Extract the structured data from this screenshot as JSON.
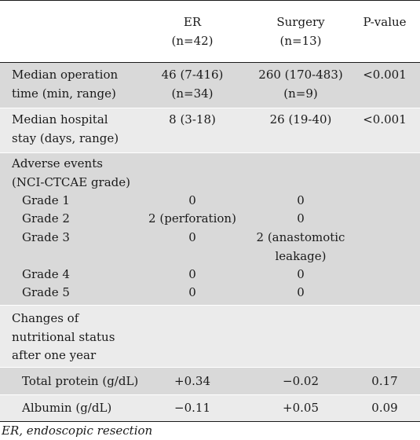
{
  "table": {
    "headers": {
      "c1": [
        "ER",
        "(n=42)"
      ],
      "c2": [
        "Surgery",
        "(n=13)"
      ],
      "c3": [
        "P-value"
      ]
    },
    "op_time": {
      "label": [
        "Median operation",
        "time (min, range)"
      ],
      "er": [
        "46 (7-416)",
        "(n=34)"
      ],
      "surg": [
        "260 (170-483)",
        "(n=9)"
      ],
      "p": "<0.001"
    },
    "stay": {
      "label": [
        "Median hospital",
        "stay (days, range)"
      ],
      "er": "8 (3-18)",
      "surg": "26 (19-40)",
      "p": "<0.001"
    },
    "adverse": {
      "label": [
        "Adverse events",
        "(NCI-CTCAE grade)"
      ],
      "grades": [
        {
          "label": "Grade 1",
          "er": "0",
          "surg": [
            "0"
          ]
        },
        {
          "label": "Grade 2",
          "er": "2 (perforation)",
          "surg": [
            "0"
          ]
        },
        {
          "label": "Grade 3",
          "er": "0",
          "surg": [
            "2 (anastomotic",
            "leakage)"
          ]
        },
        {
          "label": "Grade 4",
          "er": "0",
          "surg": [
            "0"
          ]
        },
        {
          "label": "Grade 5",
          "er": "0",
          "surg": [
            "0"
          ]
        }
      ]
    },
    "nutrition": {
      "label": [
        "Changes of",
        "nutritional status",
        "after one year"
      ],
      "rows": [
        {
          "label": "Total protein (g/dL)",
          "er": "+0.34",
          "surg": "−0.02",
          "p": "0.17"
        },
        {
          "label": "Albumin (g/dL)",
          "er": "−0.11",
          "surg": "+0.05",
          "p": "0.09"
        }
      ]
    }
  },
  "footer": "ER, endoscopic resection",
  "colors": {
    "band_dark": "#d9d9d9",
    "band_light": "#ebebeb",
    "rule": "#1a1a1a"
  }
}
